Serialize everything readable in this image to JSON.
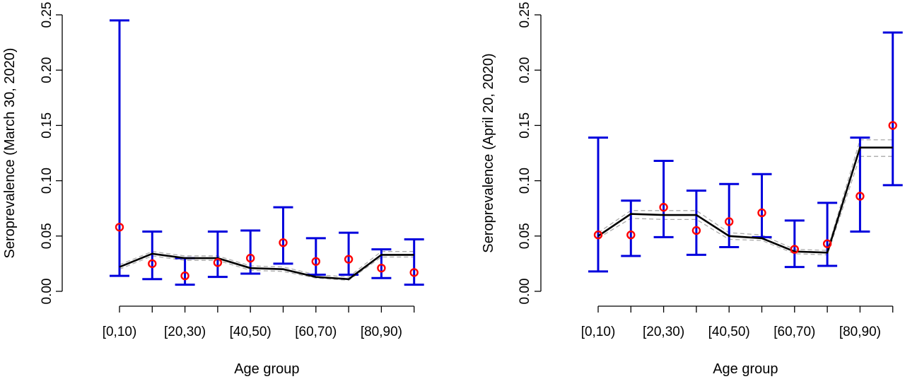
{
  "chart_data": [
    {
      "type": "line",
      "xlabel": "Age group",
      "ylabel": "Seroprevalence (March 30, 2020)",
      "ylim": [
        0,
        0.25
      ],
      "yticks": [
        "0.00",
        "0.05",
        "0.10",
        "0.15",
        "0.20",
        "0.25"
      ],
      "tick_labels": [
        "[0,10)",
        "[20,30)",
        "[40,50)",
        "[60,70)",
        "[80,90)"
      ],
      "n_groups": 10,
      "series": [
        {
          "kind": "observed",
          "color": "#ff0000",
          "values": [
            0.058,
            0.025,
            0.014,
            0.026,
            0.03,
            0.044,
            0.027,
            0.029,
            0.021,
            0.017
          ]
        },
        {
          "kind": "ci",
          "color": "#0000dd",
          "lower": [
            0.014,
            0.011,
            0.006,
            0.013,
            0.016,
            0.025,
            0.015,
            0.015,
            0.012,
            0.006
          ],
          "upper": [
            0.245,
            0.054,
            0.03,
            0.054,
            0.055,
            0.076,
            0.048,
            0.053,
            0.038,
            0.047
          ]
        },
        {
          "kind": "fit",
          "color": "#000000",
          "values": [
            0.022,
            0.034,
            0.03,
            0.03,
            0.021,
            0.02,
            0.013,
            0.011,
            0.033,
            0.033
          ]
        },
        {
          "kind": "fit-band",
          "color": "#aaaaaa",
          "lower": [
            0.02,
            0.032,
            0.028,
            0.028,
            0.019,
            0.018,
            0.012,
            0.01,
            0.031,
            0.031
          ],
          "upper": [
            0.024,
            0.036,
            0.032,
            0.032,
            0.023,
            0.022,
            0.015,
            0.013,
            0.036,
            0.036
          ]
        }
      ]
    },
    {
      "type": "line",
      "xlabel": "Age group",
      "ylabel": "Seroprevalence (April 20, 2020)",
      "ylim": [
        0,
        0.25
      ],
      "yticks": [
        "0.00",
        "0.05",
        "0.10",
        "0.15",
        "0.20",
        "0.25"
      ],
      "tick_labels": [
        "[0,10)",
        "[20,30)",
        "[40,50)",
        "[60,70)",
        "[80,90)"
      ],
      "n_groups": 10,
      "series": [
        {
          "kind": "observed",
          "color": "#ff0000",
          "values": [
            0.051,
            0.051,
            0.076,
            0.055,
            0.063,
            0.071,
            0.038,
            0.043,
            0.086,
            0.15
          ]
        },
        {
          "kind": "ci",
          "color": "#0000dd",
          "lower": [
            0.018,
            0.032,
            0.049,
            0.033,
            0.04,
            0.049,
            0.022,
            0.023,
            0.054,
            0.096
          ],
          "upper": [
            0.139,
            0.082,
            0.118,
            0.091,
            0.097,
            0.106,
            0.064,
            0.08,
            0.139,
            0.234
          ]
        },
        {
          "kind": "fit",
          "color": "#000000",
          "values": [
            0.05,
            0.07,
            0.069,
            0.069,
            0.05,
            0.048,
            0.036,
            0.035,
            0.13,
            0.13
          ]
        },
        {
          "kind": "fit-band",
          "color": "#aaaaaa",
          "lower": [
            0.048,
            0.066,
            0.065,
            0.065,
            0.047,
            0.046,
            0.034,
            0.033,
            0.122,
            0.122
          ],
          "upper": [
            0.053,
            0.073,
            0.073,
            0.073,
            0.053,
            0.051,
            0.038,
            0.037,
            0.137,
            0.137
          ]
        }
      ]
    }
  ]
}
